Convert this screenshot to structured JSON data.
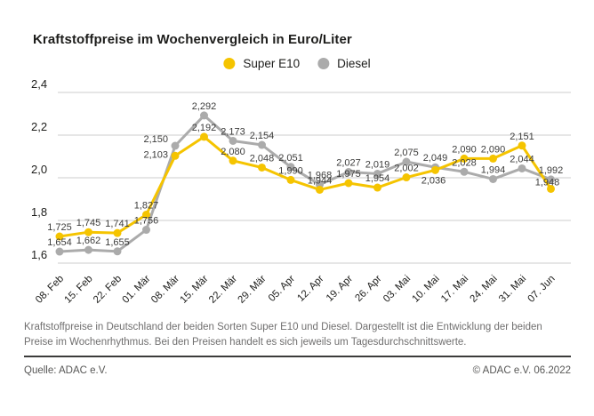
{
  "title": "Kraftstoffpreise im Wochenvergleich in Euro/Liter",
  "colors": {
    "super_e10": "#f5c400",
    "diesel": "#ababab",
    "gridline": "#cccccc",
    "axis_text": "#1d1d1b",
    "value_label_text": "#3c3c3b"
  },
  "chart_data": {
    "type": "line",
    "title": "Kraftstoffpreise im Wochenvergleich in Euro/Liter",
    "xlabel": "",
    "ylabel": "Euro/Liter",
    "ylim": [
      1.6,
      2.4
    ],
    "yticks": [
      1.6,
      1.8,
      2.0,
      2.2,
      2.4
    ],
    "grid": true,
    "legend_position": "top-center",
    "decimal_separator": ",",
    "categories": [
      "08. Feb",
      "15. Feb",
      "22. Feb",
      "01. Mär",
      "08. Mär",
      "15. Mär",
      "22. Mär",
      "29. Mär",
      "05. Apr",
      "12. Apr",
      "19. Apr",
      "26. Apr",
      "03. Mai",
      "10. Mai",
      "17. Mai",
      "24. Mai",
      "31. Mai",
      "07. Jun"
    ],
    "series": [
      {
        "name": "Super E10",
        "color": "#f5c400",
        "values": [
          1.725,
          1.745,
          1.741,
          1.827,
          2.103,
          2.192,
          2.08,
          2.048,
          1.99,
          1.944,
          1.975,
          1.954,
          2.002,
          2.036,
          2.09,
          2.09,
          2.151,
          1.948
        ]
      },
      {
        "name": "Diesel",
        "color": "#ababab",
        "values": [
          1.654,
          1.662,
          1.655,
          1.756,
          2.15,
          2.292,
          2.173,
          2.154,
          2.051,
          1.968,
          2.027,
          2.019,
          2.075,
          2.049,
          2.028,
          1.994,
          2.044,
          1.992
        ]
      }
    ]
  },
  "footer": {
    "description": "Kraftstoffpreise in Deutschland der beiden Sorten Super E10 und Diesel. Dargestellt ist die Entwicklung der beiden Preise im Wochenrhythmus. Bei den Preisen handelt es sich jeweils um Tagesdurchschnittswerte.",
    "source": "Quelle: ADAC e.V.",
    "copyright": "© ADAC e.V. 06.2022"
  }
}
